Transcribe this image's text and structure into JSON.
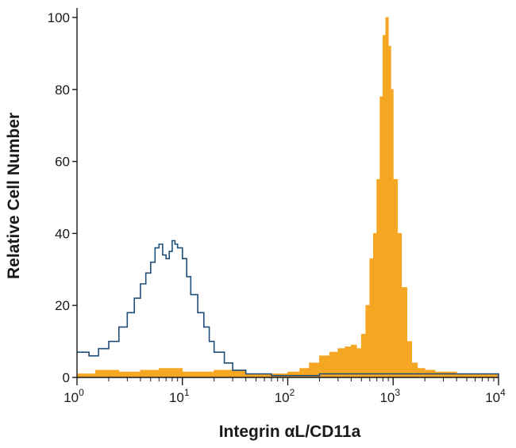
{
  "chart_data": {
    "type": "area",
    "title": "",
    "xlabel": "Integrin αL/CD11a",
    "ylabel": "Relative Cell Number",
    "x_scale": "log",
    "xlim": [
      1,
      10000
    ],
    "ylim": [
      0,
      100
    ],
    "y_ticks": [
      0,
      20,
      40,
      60,
      80,
      100
    ],
    "x_ticks": [
      {
        "value": 1,
        "base": "10",
        "exp": "0"
      },
      {
        "value": 10,
        "base": "10",
        "exp": "1"
      },
      {
        "value": 100,
        "base": "10",
        "exp": "2"
      },
      {
        "value": 1000,
        "base": "10",
        "exp": "3"
      },
      {
        "value": 10000,
        "base": "10",
        "exp": "4"
      }
    ],
    "grid": false,
    "series": [
      {
        "style": "filled",
        "color": "#f5a623",
        "x": [
          1,
          1.5,
          2.5,
          4,
          6,
          10,
          20,
          40,
          70,
          100,
          130,
          160,
          200,
          250,
          300,
          350,
          400,
          450,
          500,
          550,
          600,
          650,
          700,
          750,
          800,
          850,
          900,
          950,
          1000,
          1100,
          1200,
          1350,
          1500,
          1700,
          2000,
          2500,
          3000,
          4000,
          6000,
          10000
        ],
        "y": [
          1,
          2,
          1.5,
          2,
          2.5,
          1.5,
          2,
          1,
          1,
          1.5,
          2.5,
          4,
          6,
          7,
          8,
          8.5,
          9,
          8,
          12,
          20,
          33,
          40,
          55,
          78,
          95,
          100,
          92,
          80,
          55,
          40,
          25,
          10,
          4,
          2.5,
          2,
          1.5,
          1.5,
          1,
          1,
          0.5
        ]
      },
      {
        "style": "outline",
        "color": "#1f4e79",
        "x": [
          1,
          1.3,
          1.6,
          2,
          2.5,
          3,
          3.5,
          4,
          4.5,
          5,
          5.5,
          6,
          6.5,
          7,
          7.5,
          8,
          8.5,
          9,
          10,
          11,
          12,
          14,
          16,
          18,
          20,
          25,
          30,
          40,
          50,
          70,
          100,
          200,
          600,
          10000
        ],
        "y": [
          7,
          6,
          8,
          10,
          14,
          18,
          22,
          26,
          29,
          32,
          36,
          37,
          34,
          33,
          35,
          38,
          37,
          36,
          33,
          28,
          23,
          18,
          14,
          10,
          7,
          4,
          2,
          1,
          1,
          0.5,
          0.5,
          1,
          1,
          0
        ]
      }
    ]
  }
}
